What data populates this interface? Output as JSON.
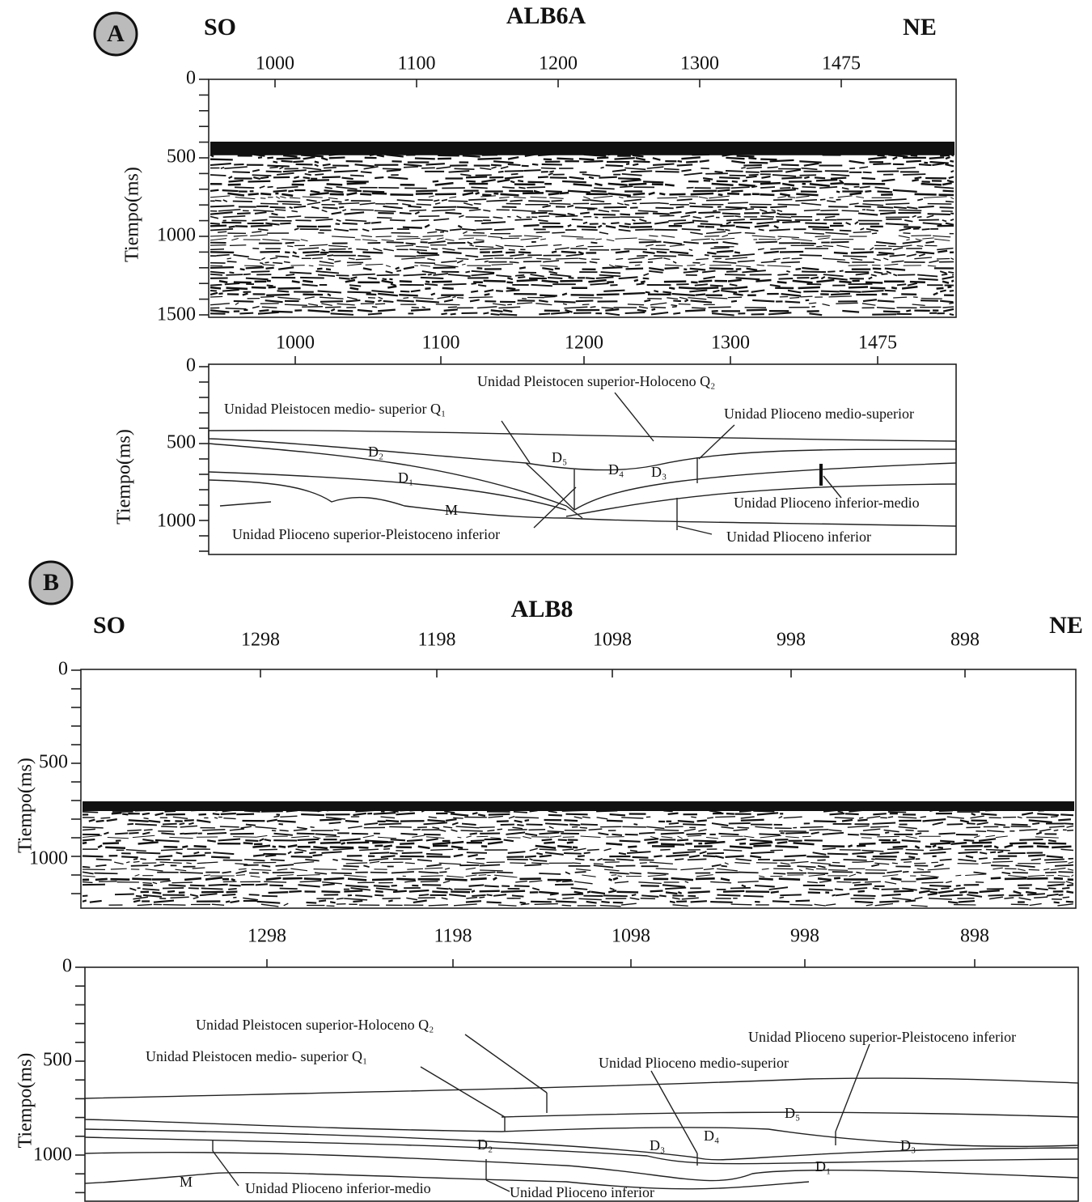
{
  "panels": [
    {
      "letter": "A",
      "title": "ALB6A",
      "left": "SO",
      "right": "NE",
      "seismic": {
        "x_ticks": [
          1000,
          1100,
          1200,
          1300,
          1475
        ],
        "y_label": "Tiempo(ms)",
        "y_ticks": [
          0,
          500,
          1000,
          1500
        ]
      },
      "interpretation": {
        "x_ticks": [
          1000,
          1100,
          1200,
          1300,
          1475
        ],
        "y_label": "Tiempo(ms)",
        "y_ticks": [
          0,
          500,
          1000
        ],
        "labels": [
          "Unidad Pleistocen superior-Holoceno Q₂",
          "Unidad Pleistocen medio- superior Q₁",
          "Unidad Plioceno medio-superior",
          "D₂",
          "D₅",
          "D₄",
          "D₃",
          "D₁",
          "Unidad Plioceno inferior-medio",
          "M",
          "Unidad Plioceno superior-Pleistoceno inferior",
          "Unidad Plioceno inferior"
        ]
      }
    },
    {
      "letter": "B",
      "title": "ALB8",
      "left": "SO",
      "right": "NE",
      "seismic": {
        "x_ticks": [
          1298,
          1198,
          1098,
          998,
          898
        ],
        "y_label": "Tiempo(ms)",
        "y_ticks": [
          0,
          500,
          1000
        ]
      },
      "interpretation": {
        "x_ticks": [
          1298,
          1198,
          1098,
          998,
          898
        ],
        "y_label": "Tiempo(ms)",
        "y_ticks": [
          0,
          500,
          1000
        ],
        "labels": [
          "Unidad Pleistocen superior-Holoceno Q₂",
          "Unidad Pleistocen medio- superior Q₁",
          "Unidad Plioceno superior-Pleistoceno inferior",
          "Unidad Plioceno medio-superior",
          "D₅",
          "D₄",
          "D₂",
          "D₃",
          "D₃",
          "D₁",
          "M",
          "Unidad Plioceno inferior-medio",
          "Unidad Plioceno inferior"
        ]
      }
    }
  ]
}
